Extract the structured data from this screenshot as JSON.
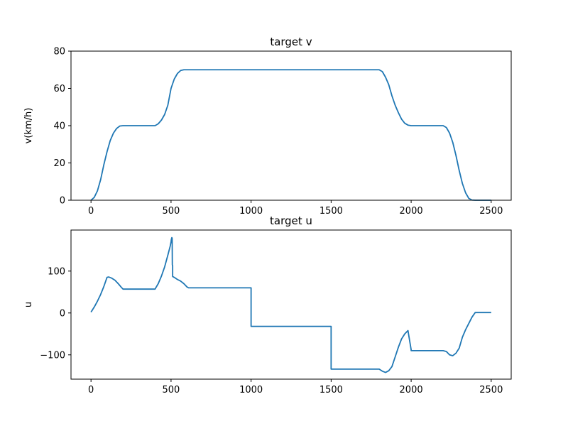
{
  "chart_data": [
    {
      "type": "line",
      "title": "target v",
      "xlabel": "",
      "ylabel": "v(km/h)",
      "xlim": [
        -125,
        2625
      ],
      "ylim": [
        0,
        80
      ],
      "xticks": [
        0,
        500,
        1000,
        1500,
        2000,
        2500
      ],
      "yticks": [
        0,
        20,
        40,
        60,
        80
      ],
      "xtick_labels": [
        "0",
        "500",
        "1000",
        "1500",
        "2000",
        "2500"
      ],
      "ytick_labels": [
        "0",
        "20",
        "40",
        "60",
        "80"
      ],
      "grid": false,
      "color": "#1f77b4",
      "series": [
        {
          "x": [
            0,
            20,
            40,
            60,
            80,
            100,
            120,
            140,
            160,
            180,
            200,
            250,
            300,
            350,
            400,
            420,
            440,
            460,
            480,
            500,
            520,
            540,
            560,
            580,
            600,
            800,
            1000,
            1200,
            1400,
            1600,
            1800,
            1820,
            1840,
            1860,
            1880,
            1900,
            1920,
            1940,
            1960,
            1980,
            2000,
            2200,
            2220,
            2240,
            2260,
            2280,
            2300,
            2320,
            2340,
            2360,
            2380,
            2400,
            2450,
            2500
          ],
          "y": [
            0,
            1.5,
            5,
            11,
            19,
            26,
            32,
            36,
            38.5,
            39.8,
            40,
            40,
            40,
            40,
            40,
            41,
            43,
            46,
            51,
            60,
            65,
            68,
            69.6,
            70,
            70,
            70,
            70,
            70,
            70,
            70,
            70,
            69,
            66,
            62,
            56,
            51,
            47,
            43.5,
            41.3,
            40.3,
            40,
            40,
            39,
            36,
            31,
            24,
            16,
            9,
            4,
            1,
            0.1,
            0,
            0,
            0
          ]
        }
      ]
    },
    {
      "type": "line",
      "title": "target u",
      "xlabel": "",
      "ylabel": "u",
      "xlim": [
        -125,
        2625
      ],
      "ylim": [
        -158,
        198
      ],
      "xticks": [
        0,
        500,
        1000,
        1500,
        2000,
        2500
      ],
      "yticks": [
        -100,
        0,
        100
      ],
      "xtick_labels": [
        "0",
        "500",
        "1000",
        "1500",
        "2000",
        "2500"
      ],
      "ytick_labels": [
        "−100",
        "0",
        "100"
      ],
      "grid": false,
      "color": "#1f77b4",
      "series": [
        {
          "x": [
            0,
            20,
            40,
            60,
            80,
            100,
            110,
            130,
            150,
            170,
            190,
            200,
            250,
            300,
            350,
            400,
            420,
            440,
            460,
            480,
            495,
            500,
            502,
            505,
            507,
            508,
            508,
            510,
            510,
            520,
            540,
            560,
            580,
            600,
            610,
            700,
            800,
            900,
            1000,
            1000,
            1100,
            1200,
            1300,
            1400,
            1500,
            1500,
            1600,
            1700,
            1800,
            1820,
            1840,
            1860,
            1880,
            1900,
            1920,
            1940,
            1960,
            1980,
            2000,
            2000,
            2050,
            2100,
            2150,
            2200,
            2220,
            2240,
            2260,
            2280,
            2300,
            2320,
            2340,
            2360,
            2380,
            2400,
            2450,
            2500
          ],
          "y": [
            2,
            14,
            28,
            44,
            63,
            85,
            86,
            83,
            78,
            70,
            61,
            57,
            57,
            57,
            57,
            57,
            70,
            88,
            110,
            138,
            160,
            170,
            176,
            180,
            178,
            115,
            115,
            113,
            87,
            85,
            80,
            76,
            70,
            62,
            60,
            60,
            60,
            60,
            60,
            -32,
            -32,
            -32,
            -32,
            -32,
            -32,
            -134,
            -134,
            -134,
            -134,
            -139,
            -142,
            -138,
            -128,
            -105,
            -82,
            -62,
            -50,
            -42,
            -88,
            -90,
            -90,
            -90,
            -90,
            -90,
            -92,
            -100,
            -102,
            -96,
            -84,
            -58,
            -40,
            -25,
            -10,
            1,
            1,
            1
          ]
        }
      ]
    }
  ]
}
